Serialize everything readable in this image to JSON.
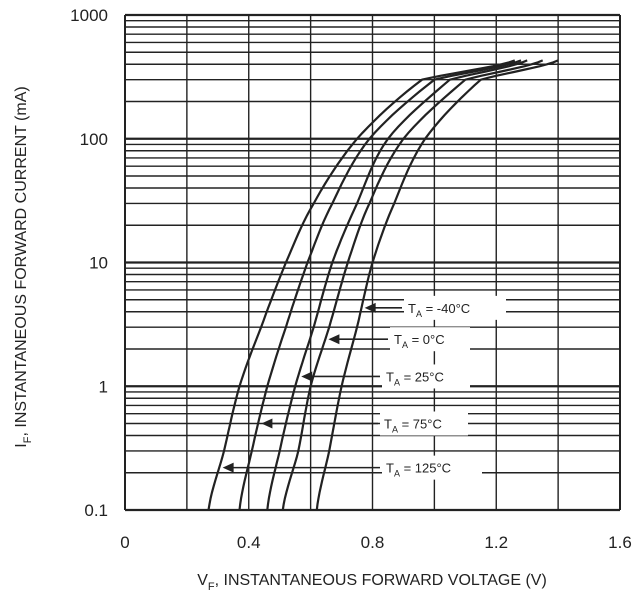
{
  "chart_data": {
    "type": "line",
    "xlabel": {
      "main": "V",
      "sub": "F",
      "rest": ", INSTANTANEOUS FORWARD VOLTAGE (V)"
    },
    "ylabel": {
      "main": "I",
      "sub": "F",
      "rest": ", INSTANTANEOUS FORWARD CURRENT (mA)"
    },
    "xlim": [
      0,
      1.6
    ],
    "ylim": [
      0.1,
      1000
    ],
    "yscale": "log",
    "grid": true,
    "xticks": [
      {
        "value": 0,
        "label": "0"
      },
      {
        "value": 0.4,
        "label": "0.4"
      },
      {
        "value": 0.8,
        "label": "0.8"
      },
      {
        "value": 1.2,
        "label": "1.2"
      },
      {
        "value": 1.6,
        "label": "1.6"
      }
    ],
    "yticks": [
      {
        "value": 0.1,
        "label": "0.1"
      },
      {
        "value": 1,
        "label": "1"
      },
      {
        "value": 10,
        "label": "10"
      },
      {
        "value": 100,
        "label": "100"
      },
      {
        "value": 1000,
        "label": "1000"
      }
    ],
    "series": [
      {
        "name": "T_A = -40°C",
        "label": {
          "main": "T",
          "sub": "A",
          "rest": " = -40°C"
        },
        "points": [
          [
            0.62,
            0.1
          ],
          [
            0.66,
            0.3
          ],
          [
            0.7,
            1
          ],
          [
            0.75,
            3
          ],
          [
            0.8,
            10
          ],
          [
            0.87,
            30
          ],
          [
            0.97,
            100
          ],
          [
            1.15,
            300
          ],
          [
            1.4,
            430
          ]
        ]
      },
      {
        "name": "T_A = 0°C",
        "label": {
          "main": "T",
          "sub": "A",
          "rest": " = 0°C"
        },
        "points": [
          [
            0.51,
            0.1
          ],
          [
            0.56,
            0.3
          ],
          [
            0.6,
            1
          ],
          [
            0.66,
            3
          ],
          [
            0.72,
            10
          ],
          [
            0.79,
            30
          ],
          [
            0.9,
            100
          ],
          [
            1.1,
            300
          ],
          [
            1.35,
            430
          ]
        ]
      },
      {
        "name": "T_A = 25°C",
        "label": {
          "main": "T",
          "sub": "A",
          "rest": " = 25°C"
        },
        "points": [
          [
            0.46,
            0.1
          ],
          [
            0.5,
            0.3
          ],
          [
            0.55,
            1
          ],
          [
            0.61,
            3
          ],
          [
            0.67,
            10
          ],
          [
            0.75,
            30
          ],
          [
            0.85,
            100
          ],
          [
            1.05,
            300
          ],
          [
            1.3,
            430
          ]
        ]
      },
      {
        "name": "T_A = 75°C",
        "label": {
          "main": "T",
          "sub": "A",
          "rest": " = 75°C"
        },
        "points": [
          [
            0.37,
            0.1
          ],
          [
            0.41,
            0.3
          ],
          [
            0.46,
            1
          ],
          [
            0.52,
            3
          ],
          [
            0.59,
            10
          ],
          [
            0.67,
            30
          ],
          [
            0.79,
            100
          ],
          [
            1.0,
            300
          ],
          [
            1.28,
            430
          ]
        ]
      },
      {
        "name": "T_A = 125°C",
        "label": {
          "main": "T",
          "sub": "A",
          "rest": " = 125°C"
        },
        "points": [
          [
            0.27,
            0.1
          ],
          [
            0.32,
            0.3
          ],
          [
            0.37,
            1
          ],
          [
            0.44,
            3
          ],
          [
            0.52,
            10
          ],
          [
            0.61,
            30
          ],
          [
            0.75,
            100
          ],
          [
            0.96,
            300
          ],
          [
            1.26,
            430
          ]
        ]
      }
    ],
    "colors": {
      "line": "#222222",
      "grid": "#222222",
      "background": "#ffffff"
    }
  }
}
